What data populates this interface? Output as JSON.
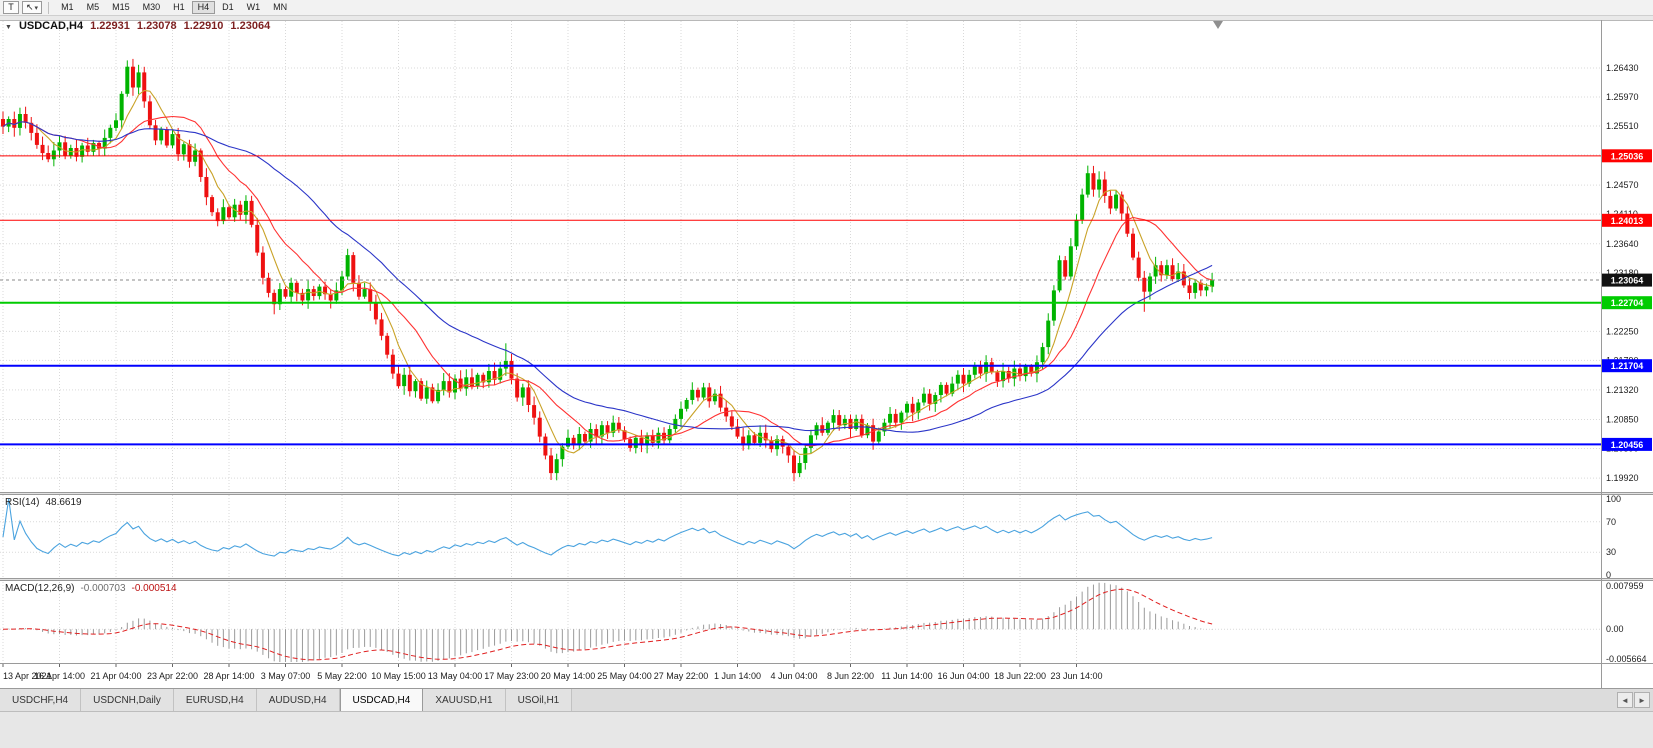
{
  "toolbar": {
    "t_button": "T",
    "cursor_icon": "↖",
    "chevron_icon": "▾",
    "timeframes": [
      "M1",
      "M5",
      "M15",
      "M30",
      "H1",
      "H4",
      "D1",
      "W1",
      "MN"
    ],
    "active_timeframe": "H4"
  },
  "chart_header": {
    "collapse_icon": "▼",
    "symbol": "USDCAD,H4",
    "open": "1.22931",
    "high": "1.23078",
    "low": "1.22910",
    "close": "1.23064"
  },
  "indicators": {
    "rsi": {
      "label": "RSI(14)",
      "value": "48.6619",
      "period": 14,
      "levels": [
        100,
        70,
        30,
        0
      ]
    },
    "macd": {
      "label": "MACD(12,26,9)",
      "value_main": "-0.000703",
      "value_signal": "-0.000514",
      "axis_max": "0.007959",
      "axis_zero": "0.00",
      "axis_min": "-0.005664",
      "fast": 12,
      "slow": 26,
      "signal_period": 9
    }
  },
  "bottom_tabs": {
    "left_arrow": "◄",
    "right_arrow": "►",
    "tabs": [
      {
        "label": "USDCHF,H4",
        "active": false
      },
      {
        "label": "USDCNH,Daily",
        "active": false
      },
      {
        "label": "EURUSD,H4",
        "active": false
      },
      {
        "label": "AUDUSD,H4",
        "active": false
      },
      {
        "label": "USDCAD,H4",
        "active": true
      },
      {
        "label": "XAUUSD,H1",
        "active": false
      },
      {
        "label": "USOil,H1",
        "active": false
      }
    ]
  },
  "chart_data": {
    "type": "candlestick",
    "title": "USDCAD,H4",
    "current_price": 1.23064,
    "first_open": 1.2562,
    "price_gridlines": [
      1.2643,
      1.2597,
      1.2551,
      1.2505,
      1.2457,
      1.2411,
      1.2364,
      1.2318,
      1.2271,
      1.2225,
      1.2179,
      1.2132,
      1.2085,
      1.2039,
      1.1992
    ],
    "hlines": [
      {
        "price": 1.25036,
        "label": "1.25036",
        "color": "#ff0000",
        "width": 1
      },
      {
        "price": 1.24013,
        "label": "1.24013",
        "color": "#ff0000",
        "width": 1
      },
      {
        "price": 1.22704,
        "label": "1.22704",
        "color": "#00cc00",
        "width": 2
      },
      {
        "price": 1.21704,
        "label": "1.21704",
        "color": "#0000ff",
        "width": 2
      },
      {
        "price": 1.20456,
        "label": "1.20456",
        "color": "#0000ff",
        "width": 2
      }
    ],
    "x_labels": [
      "13 Apr 2021",
      "16 Apr 14:00",
      "21 Apr 04:00",
      "23 Apr 22:00",
      "28 Apr 14:00",
      "3 May 07:00",
      "5 May 22:00",
      "10 May 15:00",
      "13 May 04:00",
      "17 May 23:00",
      "20 May 14:00",
      "25 May 04:00",
      "27 May 22:00",
      "1 Jun 14:00",
      "4 Jun 04:00",
      "8 Jun 22:00",
      "11 Jun 14:00",
      "16 Jun 04:00",
      "18 Jun 22:00",
      "23 Jun 14:00"
    ],
    "closes": [
      1.255,
      1.2562,
      1.2548,
      1.257,
      1.2556,
      1.254,
      1.2521,
      1.2508,
      1.2498,
      1.2512,
      1.2525,
      1.2504,
      1.2516,
      1.2502,
      1.252,
      1.251,
      1.2524,
      1.2515,
      1.2532,
      1.2548,
      1.256,
      1.2602,
      1.2645,
      1.2612,
      1.2636,
      1.259,
      1.2552,
      1.2528,
      1.2546,
      1.252,
      1.2538,
      1.2506,
      1.2522,
      1.2494,
      1.2512,
      1.247,
      1.2438,
      1.2414,
      1.24,
      1.2422,
      1.2406,
      1.2426,
      1.241,
      1.2432,
      1.2394,
      1.235,
      1.231,
      1.2286,
      1.2268,
      1.2292,
      1.228,
      1.2302,
      1.2286,
      1.2274,
      1.2292,
      1.2281,
      1.2296,
      1.2284,
      1.2274,
      1.229,
      1.2312,
      1.2346,
      1.2302,
      1.228,
      1.2292,
      1.227,
      1.2244,
      1.2218,
      1.2188,
      1.2158,
      1.2138,
      1.2156,
      1.213,
      1.2146,
      1.2118,
      1.2136,
      1.2114,
      1.2132,
      1.2146,
      1.2128,
      1.215,
      1.2134,
      1.2152,
      1.2138,
      1.2156,
      1.2144,
      1.2162,
      1.2148,
      1.2166,
      1.2178,
      1.215,
      1.212,
      1.2136,
      1.2108,
      1.2088,
      1.2058,
      1.2028,
      1.2,
      1.2022,
      1.2042,
      1.2056,
      1.2044,
      1.2062,
      1.205,
      1.207,
      1.2058,
      1.2076,
      1.2064,
      1.208,
      1.2068,
      1.2054,
      1.204,
      1.2056,
      1.2044,
      1.206,
      1.2048,
      1.2064,
      1.2052,
      1.207,
      1.2086,
      1.2102,
      1.2116,
      1.2132,
      1.212,
      1.2136,
      1.2114,
      1.2126,
      1.2104,
      1.209,
      1.2074,
      1.2058,
      1.2044,
      1.206,
      1.2048,
      1.2064,
      1.2052,
      1.2038,
      1.2054,
      1.2042,
      1.2028,
      1.2,
      1.2016,
      1.204,
      1.206,
      1.2076,
      1.2064,
      1.208,
      1.2092,
      1.2076,
      1.2086,
      1.207,
      1.2086,
      1.206,
      1.2076,
      1.205,
      1.2066,
      1.208,
      1.2094,
      1.208,
      1.2096,
      1.211,
      1.2096,
      1.2112,
      1.2126,
      1.211,
      1.2124,
      1.214,
      1.2126,
      1.2142,
      1.2156,
      1.2142,
      1.2156,
      1.217,
      1.2158,
      1.2176,
      1.216,
      1.2146,
      1.2162,
      1.215,
      1.2166,
      1.2154,
      1.217,
      1.2158,
      1.2176,
      1.22,
      1.2242,
      1.229,
      1.2338,
      1.2312,
      1.236,
      1.2402,
      1.2442,
      1.2476,
      1.245,
      1.2466,
      1.244,
      1.242,
      1.2442,
      1.2412,
      1.238,
      1.2342,
      1.231,
      1.2288,
      1.2312,
      1.233,
      1.2314,
      1.233,
      1.2308,
      1.232,
      1.2298,
      1.2286,
      1.2302,
      1.229,
      1.2296,
      1.23064
    ],
    "wick_overrides": {
      "22": {
        "h": 1.2655
      },
      "24": {
        "h": 1.2648
      },
      "48": {
        "l": 1.2252
      },
      "61": {
        "h": 1.2356
      },
      "89": {
        "h": 1.2206
      },
      "97": {
        "l": 1.1989
      },
      "140": {
        "l": 1.1987
      },
      "192": {
        "h": 1.2488
      },
      "194": {
        "h": 1.2479
      },
      "202": {
        "l": 1.2256
      }
    },
    "ma": [
      {
        "period": 6,
        "color": "#c9a227"
      },
      {
        "period": 14,
        "color": "#ff3333"
      },
      {
        "period": 34,
        "color": "#2b35c8"
      }
    ],
    "rsi_period": 14,
    "colors": {
      "up": "#00b300",
      "down": "#ee1111",
      "grid": "#d9d9d9",
      "rsi": "#4aa3df",
      "macd_hist": "#9a9a9a",
      "macd_signal": "#e02020",
      "current_badge": "#111111"
    }
  }
}
